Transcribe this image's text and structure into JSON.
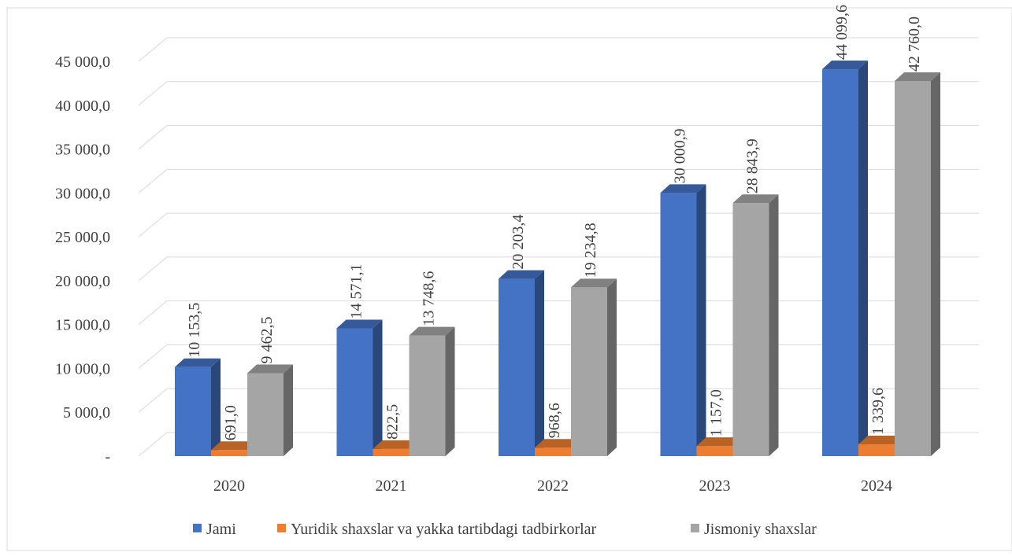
{
  "chart_data": {
    "type": "bar",
    "style": "3d-clustered-column",
    "categories": [
      "2020",
      "2021",
      "2022",
      "2023",
      "2024"
    ],
    "series": [
      {
        "name": "Jami",
        "values": [
          10153.5,
          14571.1,
          20203.4,
          30000.9,
          44099.6
        ],
        "labels": [
          "10 153,5",
          "14 571,1",
          "20 203,4",
          "30 000,9",
          "44 099,6"
        ],
        "color": "#4472C4"
      },
      {
        "name": "Yuridik shaxslar va yakka tartibdagi tadbirkorlar",
        "values": [
          691.0,
          822.5,
          968.6,
          1157.0,
          1339.6
        ],
        "labels": [
          "691,0",
          "822,5",
          "968,6",
          "1 157,0",
          "1 339,6"
        ],
        "color": "#ED7D31"
      },
      {
        "name": "Jismoniy shaxslar",
        "values": [
          9462.5,
          13748.6,
          19234.8,
          28843.9,
          42760.0
        ],
        "labels": [
          "9 462,5",
          "13 748,6",
          "19 234,8",
          "28 843,9",
          "42 760,0"
        ],
        "color": "#A5A5A5"
      }
    ],
    "y_ticks": [
      "-",
      "5 000,0",
      "10 000,0",
      "15 000,0",
      "20 000,0",
      "25 000,0",
      "30 000,0",
      "35 000,0",
      "40 000,0",
      "45 000,0"
    ],
    "ylim": [
      0,
      45000
    ],
    "grid": true,
    "legend_position": "bottom"
  }
}
